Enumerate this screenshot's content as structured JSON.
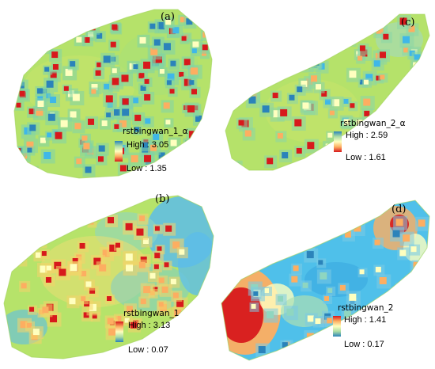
{
  "panels": [
    {
      "label": "(a)",
      "legend": {
        "title": "rstbingwan_1_α",
        "high": "High : 3.05",
        "low": "Low : 1.35",
        "ramp": [
          "#2b83ba",
          "#abdda4",
          "#ffffbf",
          "#fdae61",
          "#d7191c"
        ]
      },
      "character": "high-variance"
    },
    {
      "label": "(c)",
      "legend": {
        "title": "rstbingwan_2_α",
        "high": "High : 2.59",
        "low": "Low : 1.61",
        "ramp": [
          "#2b83ba",
          "#abdda4",
          "#ffffbf",
          "#fdae61",
          "#d7191c"
        ]
      },
      "character": "high-variance"
    },
    {
      "label": "(b)",
      "legend": {
        "title": "rstbingwan_1",
        "high": "High : 3.13",
        "low": "Low : 0.07",
        "ramp": [
          "#d7191c",
          "#fdae61",
          "#ffffbf",
          "#abdda4",
          "#2b83ba"
        ]
      },
      "character": "warm-hotspots"
    },
    {
      "label": "(d)",
      "legend": {
        "title": "rstbingwan_2",
        "high": "High : 1.41",
        "low": "Low : 0.17",
        "ramp": [
          "#d7191c",
          "#fdae61",
          "#ffffbf",
          "#abdda4",
          "#2b83ba"
        ]
      },
      "character": "cool-dominant"
    }
  ],
  "colors": {
    "blue": "#2b83ba",
    "cyan": "#3fb7e8",
    "lightgreen": "#abdda4",
    "green": "#b5e26a",
    "yellow": "#ffffbf",
    "orange": "#fdae61",
    "red": "#d7191c"
  }
}
